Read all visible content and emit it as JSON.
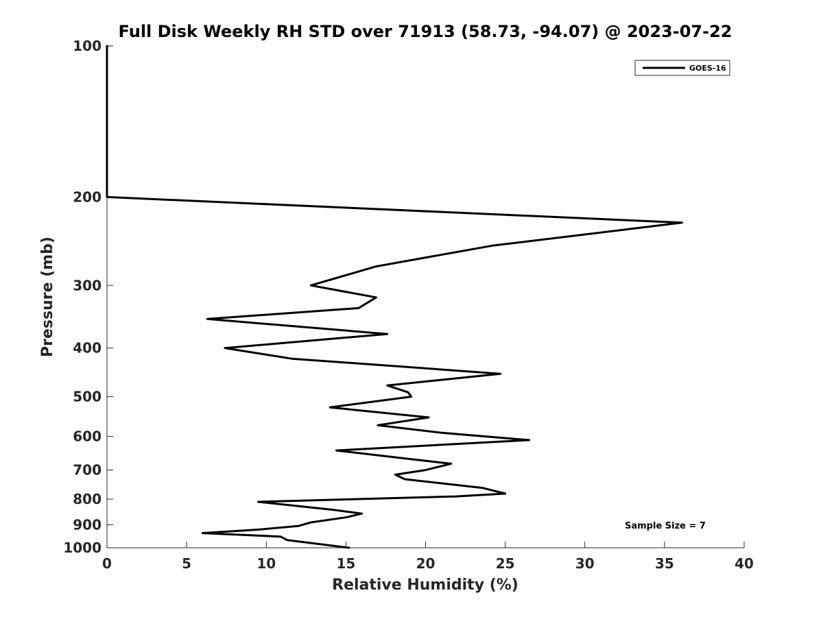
{
  "chart_data": {
    "type": "line",
    "title": "Full Disk Weekly RH STD over 71913 (58.73, -94.07) @ 2023-07-22",
    "xlabel": "Relative Humidity (%)",
    "ylabel": "Pressure (mb)",
    "xlim": [
      0,
      40
    ],
    "ylim": [
      100,
      1000
    ],
    "y_scale": "log",
    "y_reversed": true,
    "grid": false,
    "x_ticks": [
      0,
      5,
      10,
      15,
      20,
      25,
      30,
      35,
      40
    ],
    "x_tick_labels": [
      "0",
      "5",
      "10",
      "15",
      "20",
      "25",
      "30",
      "35",
      "40"
    ],
    "y_ticks": [
      100,
      200,
      300,
      400,
      500,
      600,
      700,
      800,
      900,
      1000
    ],
    "y_tick_labels": [
      "100",
      "200",
      "300",
      "400",
      "500",
      "600",
      "700",
      "800",
      "900",
      "1000"
    ],
    "legend": {
      "placement": "top-right",
      "entries": [
        "GOES-16"
      ]
    },
    "annotation": "Sample Size = 7",
    "series": [
      {
        "name": "GOES-16",
        "color": "#000000",
        "points": [
          [
            0.0,
            100
          ],
          [
            0.0,
            150
          ],
          [
            0.0,
            200
          ],
          [
            36.1,
            225
          ],
          [
            24.2,
            250
          ],
          [
            16.9,
            275
          ],
          [
            14.4,
            290
          ],
          [
            12.8,
            300
          ],
          [
            16.9,
            317
          ],
          [
            15.8,
            333
          ],
          [
            6.3,
            350
          ],
          [
            17.6,
            375
          ],
          [
            7.4,
            400
          ],
          [
            11.6,
            420
          ],
          [
            24.7,
            450
          ],
          [
            17.6,
            475
          ],
          [
            18.9,
            490
          ],
          [
            19.1,
            500
          ],
          [
            14.0,
            525
          ],
          [
            20.2,
            550
          ],
          [
            17.0,
            570
          ],
          [
            21.0,
            590
          ],
          [
            26.5,
            610
          ],
          [
            14.4,
            640
          ],
          [
            18.9,
            665
          ],
          [
            21.6,
            680
          ],
          [
            20.0,
            700
          ],
          [
            18.1,
            715
          ],
          [
            18.7,
            730
          ],
          [
            23.6,
            760
          ],
          [
            25.0,
            780
          ],
          [
            21.9,
            790
          ],
          [
            9.5,
            810
          ],
          [
            14.2,
            840
          ],
          [
            16.0,
            855
          ],
          [
            15.0,
            870
          ],
          [
            12.8,
            890
          ],
          [
            12.0,
            905
          ],
          [
            9.5,
            920
          ],
          [
            6.0,
            935
          ],
          [
            10.9,
            950
          ],
          [
            11.3,
            965
          ],
          [
            15.2,
            1000
          ]
        ]
      }
    ]
  }
}
